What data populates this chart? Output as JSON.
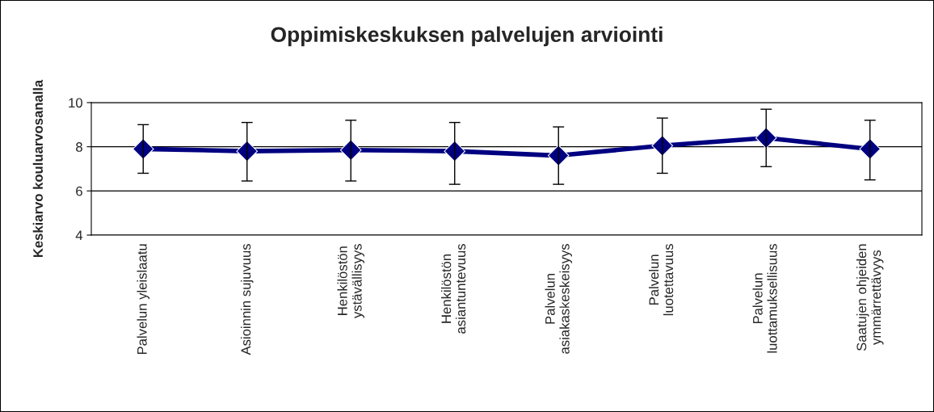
{
  "chart_data": {
    "type": "line",
    "title": "Oppimiskeskuksen palvelujen arviointi",
    "ylabel": "Keskiarvo kouluarvosanalla",
    "categories": [
      "Palvelun yleislaatu",
      "Asioinnin sujuvuus",
      "Henkilöstön\nystävällisyys",
      "Henkilöstön\nasiantuntevuus",
      "Palvelun\nasiakaskeskeisyys",
      "Palvelun\nluotettavuus",
      "Palvelun\nluottamuksellisuus",
      "Saatujen ohjeiden\nymmärrettävyys"
    ],
    "series": [
      {
        "color": "#000080",
        "values": [
          7.9,
          7.8,
          7.85,
          7.8,
          7.6,
          8.05,
          8.4,
          7.9
        ],
        "errors": [
          [
            6.8,
            9.0
          ],
          [
            6.45,
            9.1
          ],
          [
            6.45,
            9.2
          ],
          [
            6.3,
            9.1
          ],
          [
            6.3,
            8.9
          ],
          [
            6.8,
            9.3
          ],
          [
            7.1,
            9.7
          ],
          [
            6.5,
            9.2
          ]
        ]
      }
    ],
    "ylim": [
      4,
      10
    ],
    "yticks": [
      4,
      6,
      8,
      10
    ],
    "grid": "y",
    "marker": "diamond",
    "line_style": "solid",
    "legend": false
  }
}
